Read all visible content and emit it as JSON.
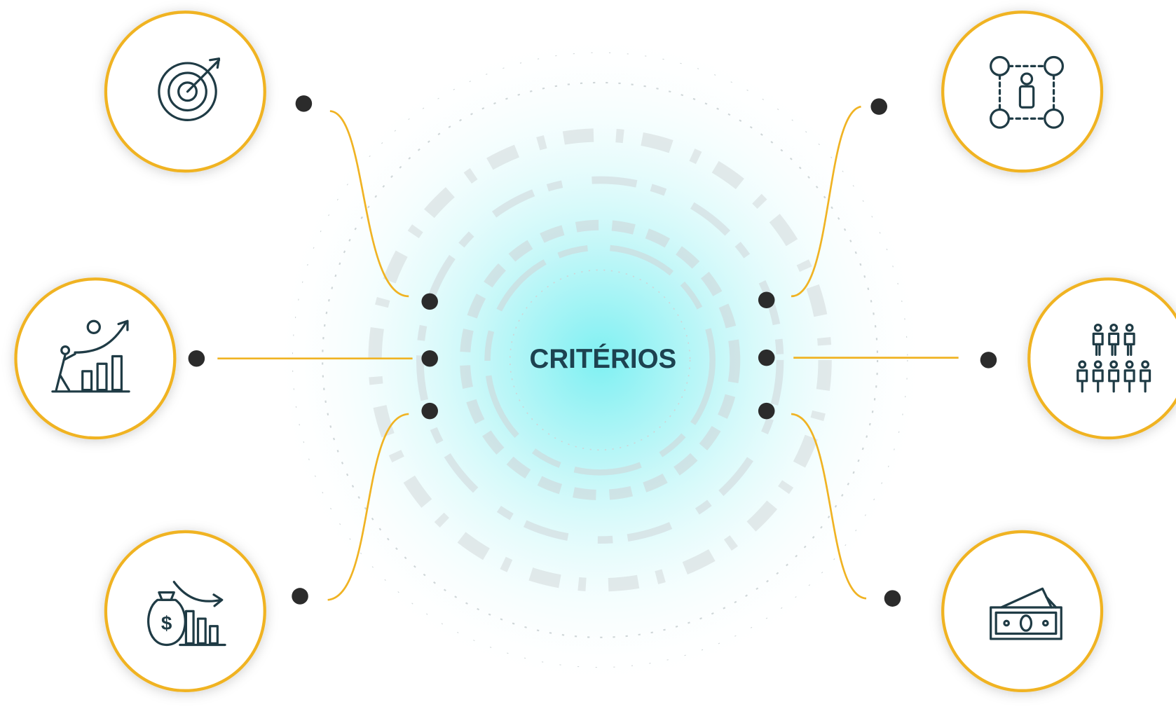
{
  "center": {
    "label": "CRITÉRIOS"
  }
}
